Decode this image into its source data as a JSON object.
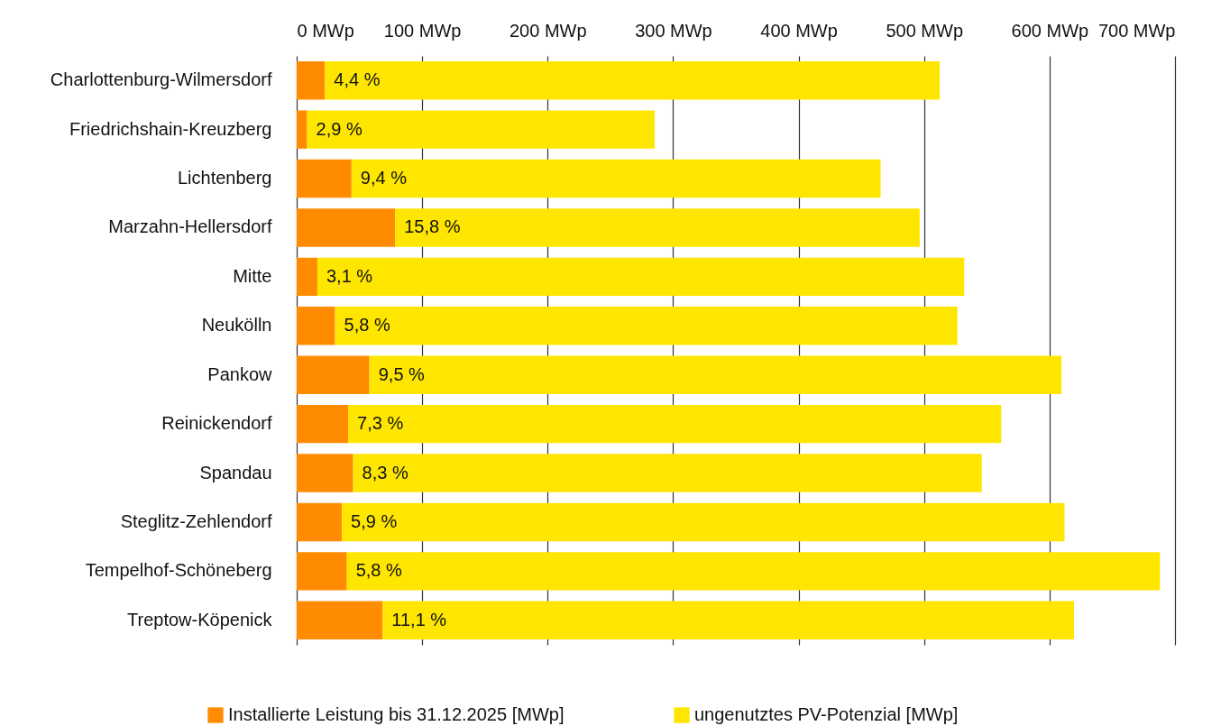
{
  "chart_data": {
    "type": "bar",
    "orientation": "horizontal",
    "stacked": true,
    "categories": [
      "Charlottenburg-Wilmersdorf",
      "Friedrichshain-Kreuzberg",
      "Lichtenberg",
      "Marzahn-Hellersdorf",
      "Mitte",
      "Neukölln",
      "Pankow",
      "Reinickendorf",
      "Spandau",
      "Steglitz-Zehlendorf",
      "Tempelhof-Schöneberg",
      "Treptow-Köpenick"
    ],
    "series": [
      {
        "name": "Installierte Leistung bis 31.12.2025 [MWp]",
        "color": "#ff8c00",
        "values": [
          22.5,
          8.3,
          43.7,
          78.5,
          16.5,
          30.6,
          58,
          41,
          45,
          36,
          40,
          68.5
        ]
      },
      {
        "name": "ungenutztes PV-Potenzial [MWp]",
        "color": "#ffe600",
        "values": [
          490,
          277,
          421.7,
          418,
          515.5,
          496,
          551.5,
          520.5,
          501,
          576,
          648,
          551
        ]
      }
    ],
    "annotations": [
      {
        "text": "4,4 %",
        "x": 22.5,
        "y": "Charlottenburg-Wilmersdorf"
      },
      {
        "text": "2,9 %",
        "x": 8.3,
        "y": "Friedrichshain-Kreuzberg"
      },
      {
        "text": "9,4 %",
        "x": 43.7,
        "y": "Lichtenberg"
      },
      {
        "text": "15,8 %",
        "x": 78.5,
        "y": "Marzahn-Hellersdorf"
      },
      {
        "text": "3,1 %",
        "x": 16.5,
        "y": "Mitte"
      },
      {
        "text": "5,8 %",
        "x": 30.6,
        "y": "Neukölln"
      },
      {
        "text": "9,5 %",
        "x": 58,
        "y": "Pankow"
      },
      {
        "text": "7,3 %",
        "x": 41,
        "y": "Reinickendorf"
      },
      {
        "text": "8,3 %",
        "x": 45,
        "y": "Spandau"
      },
      {
        "text": "5,9 %",
        "x": 36,
        "y": "Steglitz-Zehlendorf"
      },
      {
        "text": "5,8 %",
        "x": 40,
        "y": "Tempelhof-Schöneberg"
      },
      {
        "text": "11,1 %",
        "x": 68.5,
        "y": "Treptow-Köpenick"
      }
    ],
    "xlim": [
      0,
      700
    ],
    "xticks": [
      {
        "value": 0,
        "label": "0 MWp"
      },
      {
        "value": 100,
        "label": "100 MWp"
      },
      {
        "value": 200,
        "label": "200 MWp"
      },
      {
        "value": 300,
        "label": "300 MWp"
      },
      {
        "value": 400,
        "label": "400 MWp"
      },
      {
        "value": 500,
        "label": "500 MWp"
      },
      {
        "value": 600,
        "label": "600 MWp"
      },
      {
        "value": 700,
        "label": "700 MWp"
      }
    ],
    "grid": "x",
    "legend": "bottom"
  }
}
